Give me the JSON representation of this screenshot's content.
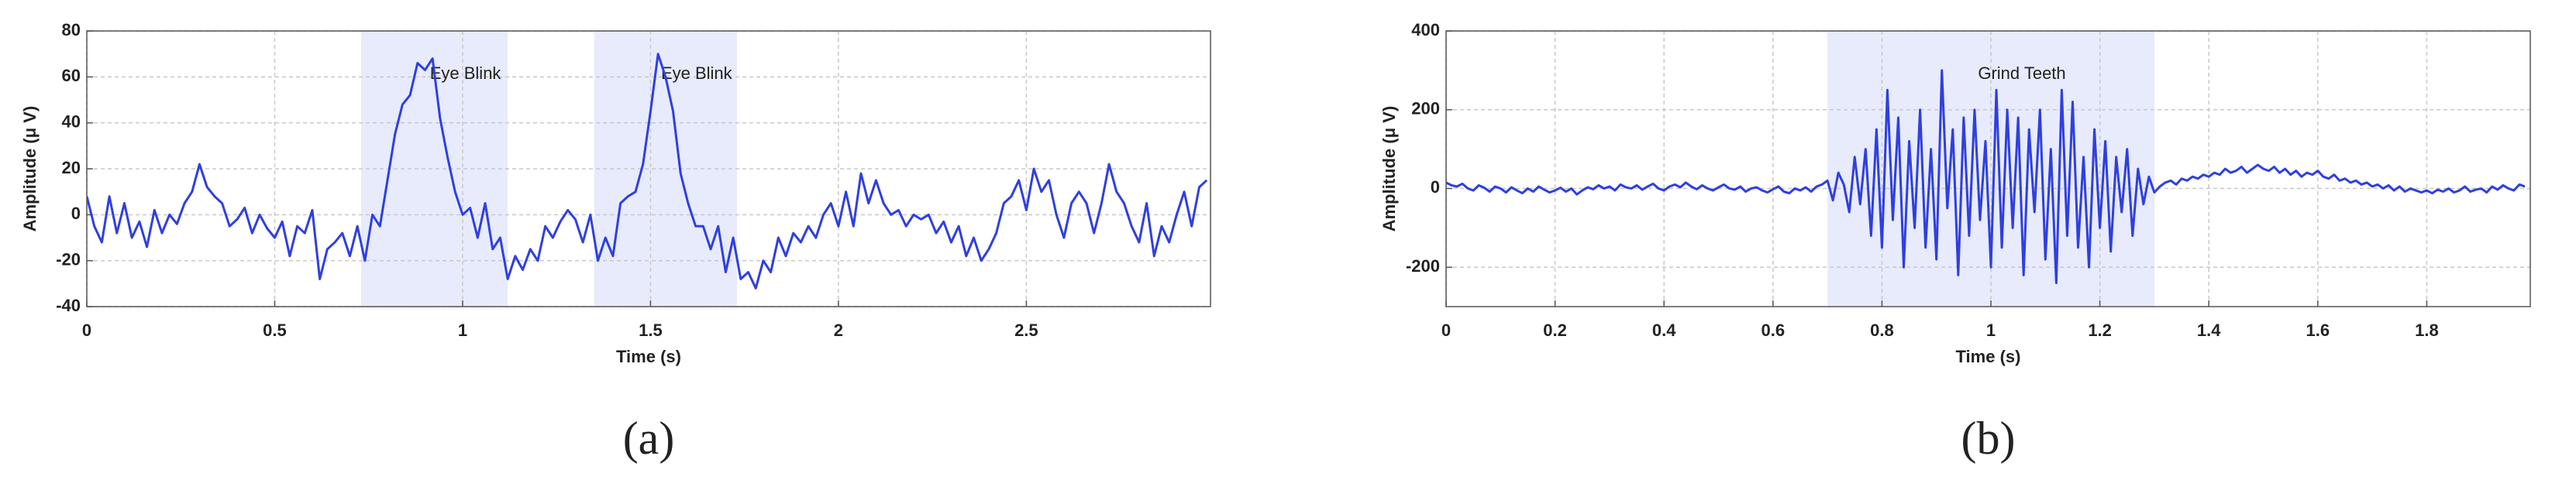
{
  "chart_data": [
    {
      "type": "line",
      "panel_label": "(a)",
      "xlabel": "Time (s)",
      "ylabel": "Amplitude (μ V)",
      "xlim": [
        0,
        2.99
      ],
      "xticks": [
        0,
        0.5,
        1,
        1.5,
        2,
        2.5
      ],
      "ylim": [
        -40,
        80
      ],
      "yticks": [
        -40,
        -20,
        0,
        20,
        40,
        60,
        80
      ],
      "grid": true,
      "regions": [
        {
          "x": [
            0.73,
            1.12
          ],
          "label": "Eye Blink"
        },
        {
          "x": [
            1.35,
            1.73
          ],
          "label": "Eye Blink"
        }
      ],
      "x": [
        0,
        0.02,
        0.04,
        0.06,
        0.08,
        0.1,
        0.12,
        0.14,
        0.16,
        0.18,
        0.2,
        0.22,
        0.24,
        0.26,
        0.28,
        0.3,
        0.32,
        0.34,
        0.36,
        0.38,
        0.4,
        0.42,
        0.44,
        0.46,
        0.48,
        0.5,
        0.52,
        0.54,
        0.56,
        0.58,
        0.6,
        0.62,
        0.64,
        0.66,
        0.68,
        0.7,
        0.72,
        0.74,
        0.76,
        0.78,
        0.8,
        0.82,
        0.84,
        0.86,
        0.88,
        0.9,
        0.92,
        0.94,
        0.96,
        0.98,
        1,
        1.02,
        1.04,
        1.06,
        1.08,
        1.1,
        1.12,
        1.14,
        1.16,
        1.18,
        1.2,
        1.22,
        1.24,
        1.26,
        1.28,
        1.3,
        1.32,
        1.34,
        1.36,
        1.38,
        1.4,
        1.42,
        1.44,
        1.46,
        1.48,
        1.5,
        1.52,
        1.54,
        1.56,
        1.58,
        1.6,
        1.62,
        1.64,
        1.66,
        1.68,
        1.7,
        1.72,
        1.74,
        1.76,
        1.78,
        1.8,
        1.82,
        1.84,
        1.86,
        1.88,
        1.9,
        1.92,
        1.94,
        1.96,
        1.98,
        2,
        2.02,
        2.04,
        2.06,
        2.08,
        2.1,
        2.12,
        2.14,
        2.16,
        2.18,
        2.2,
        2.22,
        2.24,
        2.26,
        2.28,
        2.3,
        2.32,
        2.34,
        2.36,
        2.38,
        2.4,
        2.42,
        2.44,
        2.46,
        2.48,
        2.5,
        2.52,
        2.54,
        2.56,
        2.58,
        2.6,
        2.62,
        2.64,
        2.66,
        2.68,
        2.7,
        2.72,
        2.74,
        2.76,
        2.78,
        2.8,
        2.82,
        2.84,
        2.86,
        2.88,
        2.9,
        2.92,
        2.94,
        2.96,
        2.98
      ],
      "series": [
        {
          "color": "#2f3fe0",
          "values": [
            8,
            -5,
            -12,
            8,
            -8,
            5,
            -10,
            -3,
            -14,
            2,
            -8,
            0,
            -4,
            5,
            10,
            22,
            12,
            8,
            5,
            -5,
            -2,
            3,
            -8,
            0,
            -6,
            -10,
            -3,
            -18,
            -5,
            -8,
            2,
            -28,
            -15,
            -12,
            -8,
            -18,
            -5,
            -20,
            0,
            -5,
            15,
            35,
            48,
            52,
            66,
            63,
            68,
            42,
            25,
            10,
            0,
            3,
            -10,
            5,
            -15,
            -10,
            -28,
            -18,
            -24,
            -15,
            -20,
            -5,
            -10,
            -3,
            2,
            -2,
            -12,
            0,
            -20,
            -10,
            -18,
            5,
            8,
            10,
            22,
            45,
            70,
            60,
            45,
            18,
            5,
            -5,
            -5,
            -15,
            -5,
            -25,
            -10,
            -28,
            -25,
            -32,
            -20,
            -25,
            -10,
            -18,
            -8,
            -12,
            -5,
            -10,
            0,
            5,
            -5,
            10,
            -5,
            18,
            5,
            15,
            5,
            0,
            2,
            -5,
            0,
            -2,
            0,
            -8,
            -3,
            -12,
            -5,
            -18,
            -10,
            -20,
            -15,
            -8,
            5,
            8,
            15,
            2,
            20,
            10,
            15,
            0,
            -10,
            5,
            10,
            5,
            -8,
            5,
            22,
            10,
            5,
            -5,
            -12,
            5,
            -18,
            -5,
            -12,
            0,
            10,
            -5,
            12,
            15
          ]
        }
      ]
    },
    {
      "type": "line",
      "panel_label": "(b)",
      "xlabel": "Time (s)",
      "ylabel": "Amplitude (μ V)",
      "xlim": [
        0,
        1.99
      ],
      "xticks": [
        0,
        0.2,
        0.4,
        0.6,
        0.8,
        1,
        1.2,
        1.4,
        1.6,
        1.8
      ],
      "ylim": [
        -300,
        400
      ],
      "yticks": [
        -200,
        0,
        200,
        400
      ],
      "grid": true,
      "regions": [
        {
          "x": [
            0.7,
            1.3
          ],
          "label": "Grind Teeth"
        }
      ],
      "x": [
        0,
        0.01,
        0.02,
        0.03,
        0.04,
        0.05,
        0.06,
        0.07,
        0.08,
        0.09,
        0.1,
        0.11,
        0.12,
        0.13,
        0.14,
        0.15,
        0.16,
        0.17,
        0.18,
        0.19,
        0.2,
        0.21,
        0.22,
        0.23,
        0.24,
        0.25,
        0.26,
        0.27,
        0.28,
        0.29,
        0.3,
        0.31,
        0.32,
        0.33,
        0.34,
        0.35,
        0.36,
        0.37,
        0.38,
        0.39,
        0.4,
        0.41,
        0.42,
        0.43,
        0.44,
        0.45,
        0.46,
        0.47,
        0.48,
        0.49,
        0.5,
        0.51,
        0.52,
        0.53,
        0.54,
        0.55,
        0.56,
        0.57,
        0.58,
        0.59,
        0.6,
        0.61,
        0.62,
        0.63,
        0.64,
        0.65,
        0.66,
        0.67,
        0.68,
        0.69,
        0.7,
        0.71,
        0.72,
        0.73,
        0.74,
        0.75,
        0.76,
        0.77,
        0.78,
        0.79,
        0.8,
        0.81,
        0.82,
        0.83,
        0.84,
        0.85,
        0.86,
        0.87,
        0.88,
        0.89,
        0.9,
        0.91,
        0.92,
        0.93,
        0.94,
        0.95,
        0.96,
        0.97,
        0.98,
        0.99,
        1,
        1.01,
        1.02,
        1.03,
        1.04,
        1.05,
        1.06,
        1.07,
        1.08,
        1.09,
        1.1,
        1.11,
        1.12,
        1.13,
        1.14,
        1.15,
        1.16,
        1.17,
        1.18,
        1.19,
        1.2,
        1.21,
        1.22,
        1.23,
        1.24,
        1.25,
        1.26,
        1.27,
        1.28,
        1.29,
        1.3,
        1.31,
        1.32,
        1.33,
        1.34,
        1.35,
        1.36,
        1.37,
        1.38,
        1.39,
        1.4,
        1.41,
        1.42,
        1.43,
        1.44,
        1.45,
        1.46,
        1.47,
        1.48,
        1.49,
        1.5,
        1.51,
        1.52,
        1.53,
        1.54,
        1.55,
        1.56,
        1.57,
        1.58,
        1.59,
        1.6,
        1.61,
        1.62,
        1.63,
        1.64,
        1.65,
        1.66,
        1.67,
        1.68,
        1.69,
        1.7,
        1.71,
        1.72,
        1.73,
        1.74,
        1.75,
        1.76,
        1.77,
        1.78,
        1.79,
        1.8,
        1.81,
        1.82,
        1.83,
        1.84,
        1.85,
        1.86,
        1.87,
        1.88,
        1.89,
        1.9,
        1.91,
        1.92,
        1.93,
        1.94,
        1.95,
        1.96,
        1.97,
        1.98
      ],
      "series": [
        {
          "color": "#2f3fe0",
          "values": [
            15,
            8,
            5,
            12,
            0,
            -5,
            8,
            2,
            -8,
            5,
            0,
            -10,
            3,
            -5,
            -12,
            0,
            -8,
            5,
            -3,
            -10,
            -5,
            2,
            -8,
            0,
            -15,
            -5,
            3,
            -2,
            8,
            0,
            5,
            -5,
            10,
            3,
            0,
            8,
            -3,
            5,
            12,
            0,
            -5,
            5,
            10,
            3,
            15,
            5,
            -2,
            8,
            0,
            -5,
            3,
            10,
            0,
            -3,
            5,
            -8,
            0,
            3,
            -5,
            -10,
            -2,
            5,
            -8,
            -12,
            0,
            -5,
            3,
            -8,
            5,
            10,
            20,
            -30,
            40,
            10,
            -60,
            80,
            -40,
            100,
            -120,
            150,
            -150,
            250,
            -80,
            180,
            -200,
            120,
            -100,
            200,
            -150,
            100,
            -180,
            300,
            -50,
            150,
            -220,
            180,
            -120,
            200,
            -80,
            120,
            -200,
            250,
            -150,
            200,
            -100,
            180,
            -220,
            150,
            -60,
            200,
            -180,
            100,
            -240,
            250,
            -120,
            220,
            -150,
            80,
            -200,
            150,
            -100,
            120,
            -160,
            80,
            -60,
            100,
            -120,
            50,
            -40,
            30,
            -10,
            5,
            15,
            20,
            10,
            25,
            20,
            30,
            25,
            35,
            30,
            40,
            35,
            50,
            40,
            45,
            55,
            40,
            50,
            60,
            50,
            45,
            55,
            40,
            50,
            35,
            45,
            30,
            40,
            35,
            45,
            30,
            25,
            35,
            20,
            25,
            15,
            20,
            10,
            15,
            5,
            10,
            0,
            8,
            -5,
            5,
            -8,
            0,
            -5,
            -10,
            -5,
            -12,
            -3,
            -8,
            0,
            -10,
            -5,
            5,
            -8,
            -3,
            0,
            -10,
            5,
            -3,
            8,
            0,
            -5,
            10,
            5
          ]
        }
      ]
    }
  ]
}
